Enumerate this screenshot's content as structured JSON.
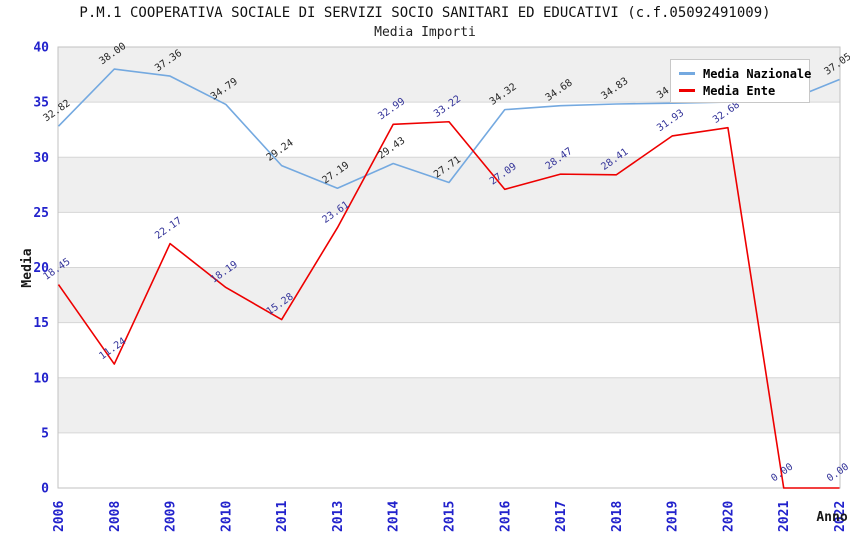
{
  "chart_data": {
    "type": "line",
    "title": "P.M.1 COOPERATIVA SOCIALE DI SERVIZI SOCIO SANITARI ED EDUCATIVI (c.f.05092491009)",
    "subtitle": "Media Importi",
    "xlabel": "Anno",
    "ylabel": "Media",
    "ylim": [
      0,
      40
    ],
    "ytick_step": 5,
    "grid": true,
    "legend_position": "top-right",
    "x": [
      "2006",
      "2008",
      "2009",
      "2010",
      "2011",
      "2013",
      "2014",
      "2015",
      "2016",
      "2017",
      "2018",
      "2019",
      "2020",
      "2021",
      "2022"
    ],
    "series": [
      {
        "name": "Media Nazionale",
        "color": "#74a9e0",
        "label_color": "#262626",
        "values": [
          32.82,
          38.0,
          37.36,
          34.79,
          29.24,
          27.19,
          29.43,
          27.71,
          34.32,
          34.68,
          34.83,
          34.9,
          35.0,
          35.0,
          37.05
        ],
        "values_estimated_indices": [
          11,
          12,
          13
        ],
        "note_estimated": "labels for 2019-2021 are hidden behind the legend box"
      },
      {
        "name": "Media Ente",
        "color": "#ee0000",
        "label_color": "#333399",
        "values": [
          18.45,
          11.24,
          22.17,
          18.19,
          15.28,
          23.61,
          32.99,
          33.22,
          27.09,
          28.47,
          28.41,
          31.93,
          32.68,
          0.0,
          0.0
        ]
      }
    ],
    "style": {
      "tick_label_color": "#2222cc",
      "band_gray": "#efefef",
      "band_white": "#ffffff",
      "grid_color": "#d6d6d6",
      "border_color": "#c2c2c2",
      "title_color": "#111111"
    }
  }
}
